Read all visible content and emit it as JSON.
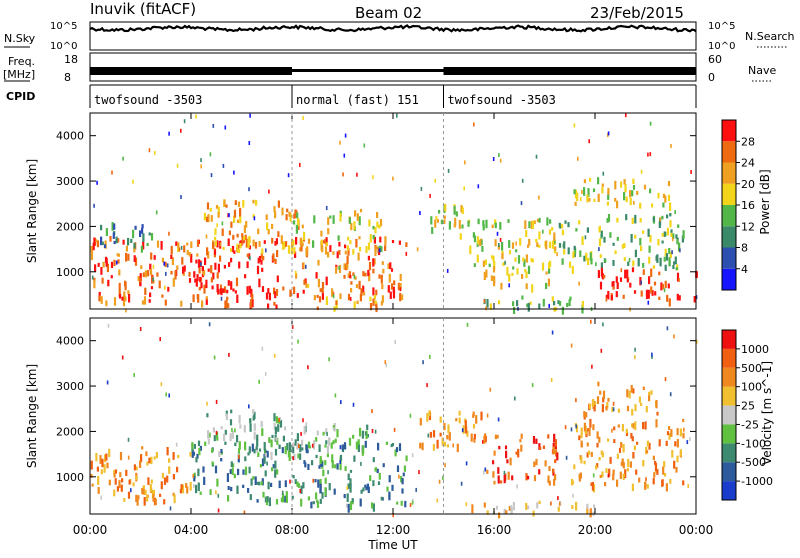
{
  "header": {
    "station": "Inuvik (fitACF)",
    "beam": "Beam 02",
    "date": "23/Feb/2015"
  },
  "top_panels": {
    "nsky_label": "N.Sky",
    "nsky_ticks": [
      "10^5",
      "10^0"
    ],
    "nsearch_label": "N.Search",
    "nsearch_ticks": [
      "10^5",
      "10^0"
    ],
    "freq_label": "Freq.",
    "freq_unit": "[MHz]",
    "freq_ticks": [
      "18",
      "8"
    ],
    "nave_label": "Nave",
    "nave_ticks": [
      "60",
      "0"
    ],
    "cpid_label": "CPID",
    "cpid_segments": [
      {
        "label": "twofsound -3503",
        "start_hour": 0,
        "end_hour": 8
      },
      {
        "label": "normal (fast) 151",
        "start_hour": 8,
        "end_hour": 14
      },
      {
        "label": "twofsound -3503",
        "start_hour": 14,
        "end_hour": 24
      }
    ]
  },
  "chart_data": [
    {
      "type": "heatmap",
      "panel": "power",
      "ylabel": "Slant Range [km]",
      "y_ticks": [
        1000,
        2000,
        3000,
        4000
      ],
      "ylim": [
        180,
        4500
      ],
      "colorbar_label": "Power [dB]",
      "colorbar_ticks": [
        "4",
        "8",
        "12",
        "16",
        "20",
        "24",
        "28"
      ],
      "colorbar_colors": [
        "#1515ff",
        "#2d4fb0",
        "#3a8a6a",
        "#52b748",
        "#f2d51a",
        "#f0a020",
        "#ee6a10",
        "#ff1010"
      ],
      "activity_blobs": [
        {
          "t0": 0.0,
          "t1": 5.0,
          "r0": 350,
          "r1": 1800,
          "level": 6
        },
        {
          "t0": 0.3,
          "t1": 2.5,
          "r0": 1500,
          "r1": 2100,
          "level": 2
        },
        {
          "t0": 4.0,
          "t1": 7.5,
          "r0": 600,
          "r1": 1800,
          "level": 7
        },
        {
          "t0": 4.5,
          "t1": 8.5,
          "r0": 1500,
          "r1": 2600,
          "level": 5
        },
        {
          "t0": 5.0,
          "t1": 8.0,
          "r0": 250,
          "r1": 700,
          "level": 7
        },
        {
          "t0": 8.0,
          "t1": 12.5,
          "r0": 500,
          "r1": 1800,
          "level": 6
        },
        {
          "t0": 8.0,
          "t1": 11.5,
          "r0": 1500,
          "r1": 2400,
          "level": 4
        },
        {
          "t0": 8.5,
          "t1": 12.0,
          "r0": 200,
          "r1": 500,
          "level": 5
        },
        {
          "t0": 13.0,
          "t1": 15.0,
          "r0": 1800,
          "r1": 2500,
          "level": 4
        },
        {
          "t0": 15.0,
          "t1": 18.5,
          "r0": 700,
          "r1": 2200,
          "level": 4
        },
        {
          "t0": 15.0,
          "t1": 19.5,
          "r0": 200,
          "r1": 500,
          "level": 3
        },
        {
          "t0": 18.5,
          "t1": 23.5,
          "r0": 1100,
          "r1": 2300,
          "level": 3
        },
        {
          "t0": 20.0,
          "t1": 24.0,
          "r0": 400,
          "r1": 1100,
          "level": 7
        },
        {
          "t0": 19.0,
          "t1": 23.0,
          "r0": 2500,
          "r1": 3100,
          "level": 4
        }
      ]
    },
    {
      "type": "heatmap",
      "panel": "velocity",
      "ylabel": "Slant Range [km]",
      "y_ticks": [
        1000,
        2000,
        3000,
        4000
      ],
      "ylim": [
        180,
        4500
      ],
      "colorbar_label": "Velocity [m s^-1]",
      "colorbar_ticks": [
        "1000",
        "500",
        "100",
        "25",
        "-25",
        "-100",
        "-500",
        "-1000"
      ],
      "colorbar_colors": [
        "#1a3ccc",
        "#2d5a9a",
        "#3d8a70",
        "#60c040",
        "#c8c8c8",
        "#f0c030",
        "#f08820",
        "#f06010",
        "#ee1010"
      ],
      "activity_blobs": [
        {
          "t0": 0.0,
          "t1": 4.0,
          "r0": 500,
          "r1": 1700,
          "level": 6
        },
        {
          "t0": 4.0,
          "t1": 8.0,
          "r0": 500,
          "r1": 1800,
          "level": 2
        },
        {
          "t0": 4.5,
          "t1": 8.5,
          "r0": 1500,
          "r1": 2500,
          "level": 3
        },
        {
          "t0": 8.0,
          "t1": 12.5,
          "r0": 400,
          "r1": 1800,
          "level": 2
        },
        {
          "t0": 8.0,
          "t1": 11.0,
          "r0": 1600,
          "r1": 2200,
          "level": 3
        },
        {
          "t0": 13.0,
          "t1": 15.5,
          "r0": 1700,
          "r1": 2500,
          "level": 6
        },
        {
          "t0": 15.5,
          "t1": 18.5,
          "r0": 900,
          "r1": 2000,
          "level": 7
        },
        {
          "t0": 15.0,
          "t1": 20.0,
          "r0": 200,
          "r1": 500,
          "level": 5
        },
        {
          "t0": 19.0,
          "t1": 23.5,
          "r0": 800,
          "r1": 2300,
          "level": 6
        },
        {
          "t0": 19.5,
          "t1": 22.5,
          "r0": 2400,
          "r1": 3100,
          "level": 6
        }
      ]
    }
  ],
  "x_axis": {
    "label": "Time UT",
    "ticks": [
      "00:00",
      "04:00",
      "08:00",
      "12:00",
      "16:00",
      "20:00",
      "00:00"
    ]
  }
}
